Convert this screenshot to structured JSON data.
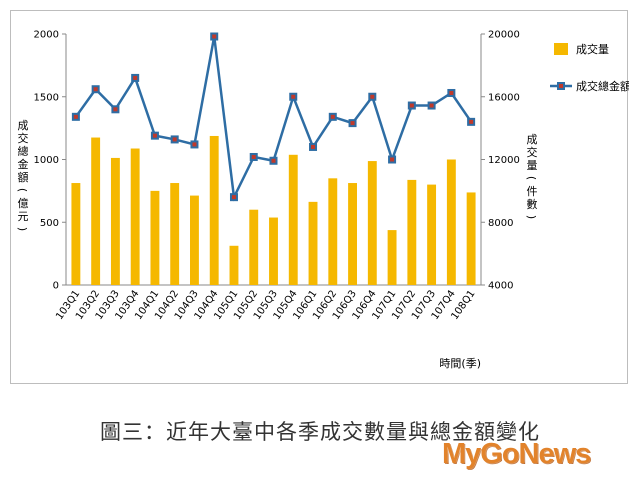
{
  "chart_data": {
    "type": "bar+line",
    "categories": [
      "103Q1",
      "103Q2",
      "103Q3",
      "103Q4",
      "104Q1",
      "104Q2",
      "104Q3",
      "104Q4",
      "105Q1",
      "105Q2",
      "105Q3",
      "105Q4",
      "106Q1",
      "106Q2",
      "106Q3",
      "106Q4",
      "107Q1",
      "107Q2",
      "107Q3",
      "107Q4",
      "108Q1"
    ],
    "series": [
      {
        "name": "成交量",
        "type": "bar",
        "axis": "right",
        "color": "#f5b800",
        "values": [
          10500,
          13400,
          12100,
          12700,
          10000,
          10500,
          9700,
          13500,
          6500,
          8800,
          8300,
          12300,
          9300,
          10800,
          10500,
          11900,
          7500,
          10700,
          10400,
          12000,
          9900
        ]
      },
      {
        "name": "成交總金額",
        "type": "line",
        "axis": "left",
        "color": "#2e6da4",
        "marker_color": "#c0392b",
        "values": [
          1340,
          1560,
          1400,
          1650,
          1190,
          1160,
          1120,
          1980,
          700,
          1020,
          990,
          1500,
          1100,
          1340,
          1290,
          1500,
          1000,
          1430,
          1430,
          1530,
          1300
        ]
      }
    ],
    "y_left": {
      "label": "成交總金額(億元)",
      "ylim": [
        0,
        2000
      ],
      "ticks": [
        0,
        500,
        1000,
        1500,
        2000
      ]
    },
    "y_right": {
      "label": "成交量(件數)",
      "ylim": [
        4000,
        20000
      ],
      "ticks": [
        4000,
        8000,
        12000,
        16000,
        20000
      ]
    },
    "xlabel": "時間(季)",
    "legend_placement": "top-right",
    "grid": false
  },
  "caption": "圖三：近年大臺中各季成交數量與總金額變化",
  "watermark": "MyGoNews"
}
